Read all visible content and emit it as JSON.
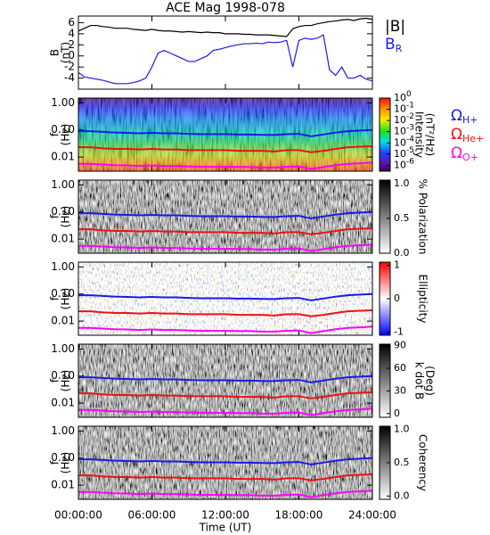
{
  "chart_data": [
    {
      "type": "line",
      "title": "ACE Mag 1998-078",
      "ylabel": [
        "B",
        "(nT)"
      ],
      "ylim": [
        -6,
        7.2
      ],
      "yticks": [
        -4,
        -2,
        0,
        2,
        4,
        6
      ],
      "x": [
        0,
        0.5,
        1,
        1.5,
        2,
        2.5,
        3,
        3.5,
        4,
        4.5,
        5,
        5.5,
        6,
        6.5,
        7,
        7.5,
        8,
        8.5,
        9,
        9.5,
        10,
        10.5,
        11,
        11.5,
        12,
        12.5,
        13,
        13.5,
        14,
        14.5,
        15,
        15.5,
        16,
        16.5,
        17,
        17.5,
        18,
        18.5,
        19,
        19.5,
        20,
        20.5,
        21,
        21.5,
        22,
        22.5,
        23,
        23.5,
        24
      ],
      "series": [
        {
          "name": "|B|",
          "color": "#000000",
          "values": [
            4.5,
            5,
            5.5,
            5.5,
            5.3,
            5.2,
            5,
            5,
            5,
            4.8,
            4.7,
            4.6,
            4.8,
            4.6,
            4.5,
            4.5,
            4.4,
            4.3,
            4.4,
            4.3,
            4.2,
            4.3,
            4.2,
            4.2,
            4,
            4,
            4,
            3.9,
            3.9,
            3.8,
            3.8,
            3.8,
            3.7,
            3.6,
            3.5,
            4.9,
            5.3,
            5.5,
            5.5,
            5.8,
            6,
            6.2,
            6.3,
            6.5,
            6.6,
            6.4,
            6.7,
            6.8,
            6.6
          ]
        },
        {
          "name": "B",
          "subscript": "R",
          "color": "#1a1ae6",
          "values": [
            -3,
            -3.8,
            -4,
            -4.2,
            -4.4,
            -4.7,
            -5,
            -5,
            -5,
            -4.8,
            -4.5,
            -4,
            -2,
            0.5,
            1,
            0.5,
            0,
            -0.5,
            -1,
            -1,
            -0.5,
            0,
            1,
            1.2,
            1.5,
            1.8,
            2,
            2.2,
            2.2,
            2.3,
            2.2,
            2.5,
            2.4,
            2.5,
            2.8,
            -2,
            2.8,
            3.2,
            3,
            3.2,
            3.8,
            -2.5,
            -3.5,
            -2,
            -4,
            -4,
            -3.5,
            -4.2,
            -4.5
          ]
        }
      ]
    },
    {
      "type": "spectrogram",
      "colormap": "rainbow",
      "ylabel": [
        "f",
        "(Hz)"
      ],
      "log_y": true,
      "ylim": [
        0.003,
        1.5
      ],
      "yticks": [
        {
          "value": 1,
          "label": "1.00"
        },
        {
          "value": 0.1,
          "label": "0.10"
        },
        {
          "value": 0.01,
          "label": "0.01"
        }
      ],
      "colorbar": {
        "label": [
          "Intensity",
          "(nT²/Hz)"
        ],
        "log": true,
        "lim": [
          3e-07,
          1
        ],
        "ticks": [
          {
            "value": 1,
            "label": "10",
            "exponent": "0"
          },
          {
            "value": 0.1,
            "label": "10",
            "exponent": "-1"
          },
          {
            "value": 0.01,
            "label": "10",
            "exponent": "-2"
          },
          {
            "value": 0.001,
            "label": "10",
            "exponent": "-3"
          },
          {
            "value": 0.0001,
            "label": "10",
            "exponent": "-4"
          },
          {
            "value": 1e-05,
            "label": "10",
            "exponent": "-5"
          },
          {
            "value": 1e-06,
            "label": "10",
            "exponent": "-6"
          }
        ]
      },
      "x": [
        0,
        1,
        2,
        3,
        4,
        5,
        6,
        7,
        8,
        9,
        10,
        11,
        12,
        13,
        14,
        15,
        16,
        17,
        18,
        19,
        20,
        21,
        22,
        23,
        24
      ],
      "series": [
        {
          "name": "Ω",
          "subscript": "H+",
          "color": "#1a1ae6",
          "values": [
            0.09,
            0.09,
            0.085,
            0.08,
            0.078,
            0.075,
            0.078,
            0.075,
            0.075,
            0.072,
            0.07,
            0.07,
            0.07,
            0.068,
            0.068,
            0.066,
            0.065,
            0.07,
            0.072,
            0.058,
            0.068,
            0.08,
            0.09,
            0.095,
            0.1
          ]
        },
        {
          "name": "Ω",
          "subscript": "He+",
          "color": "#ee1111",
          "values": [
            0.023,
            0.023,
            0.021,
            0.02,
            0.02,
            0.019,
            0.02,
            0.019,
            0.019,
            0.018,
            0.018,
            0.018,
            0.018,
            0.017,
            0.017,
            0.017,
            0.016,
            0.018,
            0.018,
            0.015,
            0.017,
            0.02,
            0.023,
            0.024,
            0.025
          ]
        },
        {
          "name": "Ω",
          "subscript": "O+",
          "color": "#ff00ff",
          "values": [
            0.0056,
            0.0056,
            0.0053,
            0.005,
            0.0049,
            0.0047,
            0.0049,
            0.0047,
            0.0047,
            0.0045,
            0.0044,
            0.0044,
            0.0044,
            0.0043,
            0.0043,
            0.0041,
            0.0041,
            0.0044,
            0.0045,
            0.0036,
            0.0043,
            0.005,
            0.0056,
            0.0059,
            0.0063
          ]
        }
      ]
    },
    {
      "type": "spectrogram",
      "colormap": "gray",
      "ylabel": [
        "f",
        "(Hz)"
      ],
      "log_y": true,
      "ylim": [
        0.003,
        1.5
      ],
      "yticks": [
        {
          "value": 1,
          "label": "1.00"
        },
        {
          "value": 0.1,
          "label": "0.10"
        },
        {
          "value": 0.01,
          "label": "0.01"
        }
      ],
      "colorbar": {
        "label": [
          "% Polarization"
        ],
        "log": false,
        "lim": [
          0,
          1.05
        ],
        "ticks": [
          {
            "value": 0,
            "label": "0.0"
          },
          {
            "value": 0.5,
            "label": "0.5"
          },
          {
            "value": 1,
            "label": "1.0"
          }
        ]
      }
    },
    {
      "type": "spectrogram",
      "colormap": "redblue",
      "ylabel": [
        "f",
        "(Hz)"
      ],
      "log_y": true,
      "ylim": [
        0.003,
        1.5
      ],
      "yticks": [
        {
          "value": 1,
          "label": "1.00"
        },
        {
          "value": 0.1,
          "label": "0.10"
        },
        {
          "value": 0.01,
          "label": "0.01"
        }
      ],
      "colorbar": {
        "label": [
          "Ellipticity"
        ],
        "log": false,
        "lim": [
          -1.1,
          1.1
        ],
        "ticks": [
          -1,
          0,
          1
        ]
      }
    },
    {
      "type": "spectrogram",
      "colormap": "gray",
      "ylabel": [
        "f",
        "(Hz)"
      ],
      "log_y": true,
      "ylim": [
        0.003,
        1.5
      ],
      "yticks": [
        {
          "value": 1,
          "label": "1.00"
        },
        {
          "value": 0.1,
          "label": "0.10"
        },
        {
          "value": 0.01,
          "label": "0.01"
        }
      ],
      "colorbar": {
        "label": [
          "k dot B",
          "(Deg)"
        ],
        "log": false,
        "lim": [
          -5,
          92
        ],
        "ticks": [
          0,
          30,
          60,
          90
        ]
      }
    },
    {
      "type": "spectrogram",
      "colormap": "gray",
      "ylabel": [
        "f",
        "(Hz)"
      ],
      "log_y": true,
      "ylim": [
        0.003,
        1.5
      ],
      "yticks": [
        {
          "value": 1,
          "label": "1.00"
        },
        {
          "value": 0.1,
          "label": "0.10"
        },
        {
          "value": 0.01,
          "label": "0.01"
        }
      ],
      "colorbar": {
        "label": [
          "Coherency"
        ],
        "log": false,
        "lim": [
          -0.05,
          1.05
        ],
        "ticks": [
          {
            "value": 0,
            "label": "0.0"
          },
          {
            "value": 0.5,
            "label": "0.5"
          },
          {
            "value": 1,
            "label": "1.0"
          }
        ]
      },
      "xlim": [
        0,
        24
      ],
      "xlabel": "Time (UT)",
      "xticks": [
        {
          "value": 0,
          "label": "00:00:00"
        },
        {
          "value": 6,
          "label": "06:00:00"
        },
        {
          "value": 12,
          "label": "12:00:00"
        },
        {
          "value": 18,
          "label": "18:00:00"
        },
        {
          "value": 24,
          "label": "24:00:00"
        }
      ]
    }
  ]
}
